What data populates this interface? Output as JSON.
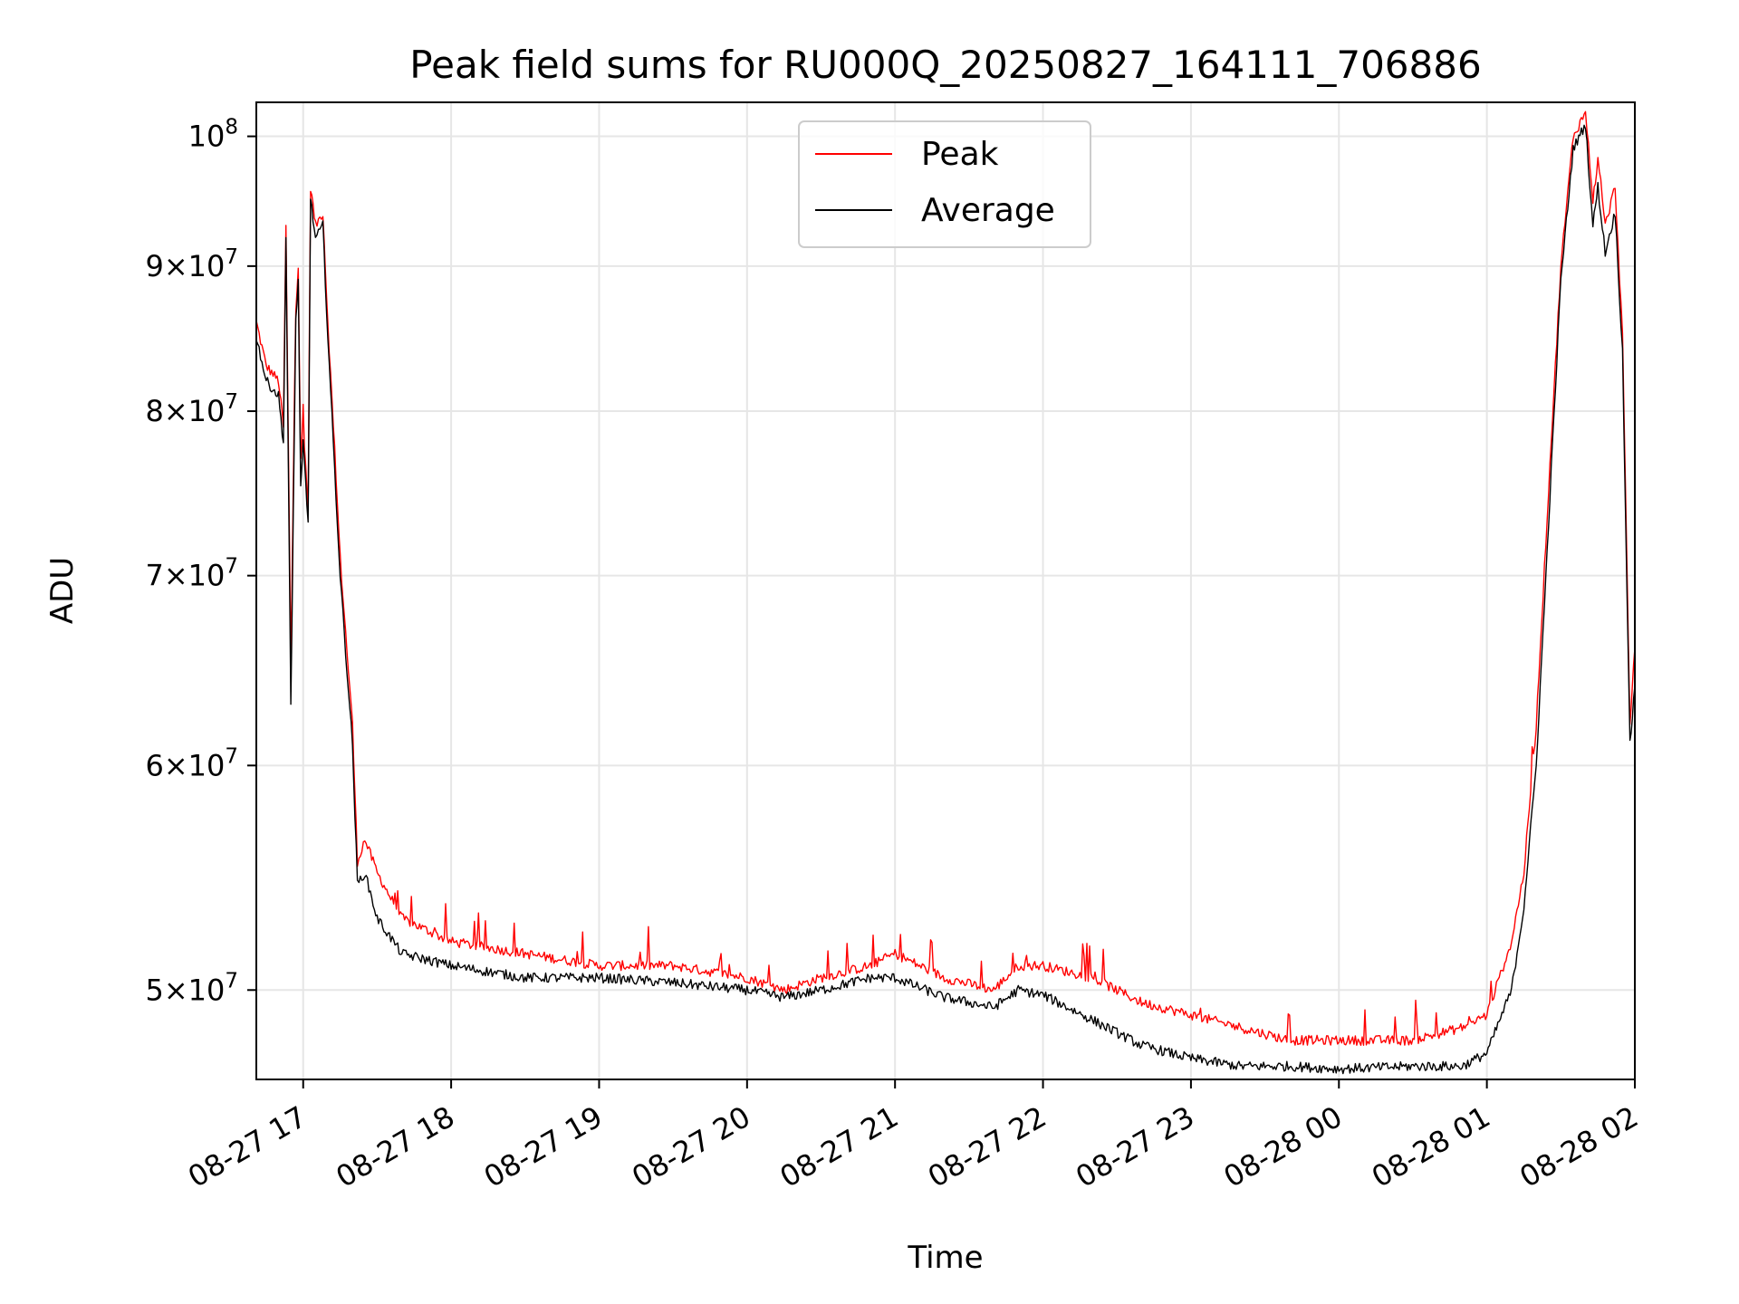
{
  "chart_data": {
    "type": "line",
    "title": "Peak field sums for RU000Q_20250827_164111_706886",
    "xlabel": "Time",
    "ylabel": "ADU",
    "y_scale": "log",
    "xlim": [
      "2025-08-27 16:41",
      "2025-08-28 02:00"
    ],
    "ylim": [
      46500000,
      102800000
    ],
    "grid": true,
    "legend": {
      "placement": "top-center",
      "entries": [
        "Peak",
        "Average"
      ]
    },
    "colors": {
      "Peak": "#ff0000",
      "Average": "#000000"
    },
    "x_ticks": [
      {
        "t": "2025-08-27 17:00",
        "label": "08-27 17"
      },
      {
        "t": "2025-08-27 18:00",
        "label": "08-27 18"
      },
      {
        "t": "2025-08-27 19:00",
        "label": "08-27 19"
      },
      {
        "t": "2025-08-27 20:00",
        "label": "08-27 20"
      },
      {
        "t": "2025-08-27 21:00",
        "label": "08-27 21"
      },
      {
        "t": "2025-08-27 22:00",
        "label": "08-27 22"
      },
      {
        "t": "2025-08-27 23:00",
        "label": "08-27 23"
      },
      {
        "t": "2025-08-28 00:00",
        "label": "08-28 00"
      },
      {
        "t": "2025-08-28 01:00",
        "label": "08-28 01"
      },
      {
        "t": "2025-08-28 02:00",
        "label": "08-28 02"
      }
    ],
    "y_ticks": [
      {
        "value": 50000000,
        "mantissa": "5",
        "exp": "7"
      },
      {
        "value": 60000000,
        "mantissa": "6",
        "exp": "7"
      },
      {
        "value": 70000000,
        "mantissa": "7",
        "exp": "7"
      },
      {
        "value": 80000000,
        "mantissa": "8",
        "exp": "7"
      },
      {
        "value": 90000000,
        "mantissa": "9",
        "exp": "7"
      },
      {
        "value": 100000000,
        "mantissa": "",
        "exp": "8"
      }
    ],
    "series": [
      {
        "name": "Peak",
        "x": [
          "2025-08-27 16:41",
          "2025-08-27 16:45",
          "2025-08-27 16:50",
          "2025-08-27 16:52",
          "2025-08-27 16:53",
          "2025-08-27 16:55",
          "2025-08-27 16:57",
          "2025-08-27 16:58",
          "2025-08-27 16:59",
          "2025-08-27 17:00",
          "2025-08-27 17:02",
          "2025-08-27 17:03",
          "2025-08-27 17:05",
          "2025-08-27 17:08",
          "2025-08-27 17:10",
          "2025-08-27 17:15",
          "2025-08-27 17:20",
          "2025-08-27 17:22",
          "2025-08-27 17:25",
          "2025-08-27 17:30",
          "2025-08-27 17:40",
          "2025-08-27 18:00",
          "2025-08-27 18:30",
          "2025-08-27 19:00",
          "2025-08-27 19:30",
          "2025-08-27 20:00",
          "2025-08-27 20:15",
          "2025-08-27 20:30",
          "2025-08-27 20:50",
          "2025-08-27 21:00",
          "2025-08-27 21:20",
          "2025-08-27 21:40",
          "2025-08-27 21:50",
          "2025-08-27 22:00",
          "2025-08-27 22:20",
          "2025-08-27 22:40",
          "2025-08-27 23:00",
          "2025-08-27 23:20",
          "2025-08-27 23:40",
          "2025-08-28 00:00",
          "2025-08-28 00:30",
          "2025-08-28 00:50",
          "2025-08-28 01:00",
          "2025-08-28 01:10",
          "2025-08-28 01:15",
          "2025-08-28 01:20",
          "2025-08-28 01:25",
          "2025-08-28 01:30",
          "2025-08-28 01:35",
          "2025-08-28 01:40",
          "2025-08-28 01:43",
          "2025-08-28 01:45",
          "2025-08-28 01:48",
          "2025-08-28 01:52",
          "2025-08-28 01:55",
          "2025-08-28 01:58",
          "2025-08-28 02:00"
        ],
        "y": [
          86000000,
          83000000,
          82000000,
          79000000,
          93000000,
          65000000,
          87000000,
          90000000,
          77000000,
          79000000,
          74000000,
          96000000,
          93000000,
          94000000,
          86000000,
          71000000,
          62000000,
          55500000,
          56500000,
          55000000,
          53000000,
          52000000,
          51500000,
          51000000,
          51000000,
          50500000,
          50000000,
          50500000,
          51000000,
          51500000,
          50500000,
          50000000,
          51000000,
          51000000,
          50500000,
          49500000,
          49000000,
          48500000,
          48000000,
          48000000,
          48000000,
          48500000,
          49000000,
          52000000,
          55000000,
          62000000,
          75000000,
          90000000,
          100000000,
          102000000,
          95000000,
          98000000,
          93000000,
          96000000,
          85000000,
          62000000,
          66000000
        ]
      },
      {
        "name": "Average",
        "x": [
          "2025-08-27 16:41",
          "2025-08-27 16:45",
          "2025-08-27 16:50",
          "2025-08-27 16:52",
          "2025-08-27 16:53",
          "2025-08-27 16:55",
          "2025-08-27 16:57",
          "2025-08-27 16:58",
          "2025-08-27 16:59",
          "2025-08-27 17:00",
          "2025-08-27 17:02",
          "2025-08-27 17:03",
          "2025-08-27 17:05",
          "2025-08-27 17:08",
          "2025-08-27 17:10",
          "2025-08-27 17:15",
          "2025-08-27 17:20",
          "2025-08-27 17:22",
          "2025-08-27 17:25",
          "2025-08-27 17:30",
          "2025-08-27 17:40",
          "2025-08-27 18:00",
          "2025-08-27 18:30",
          "2025-08-27 19:00",
          "2025-08-27 19:30",
          "2025-08-27 20:00",
          "2025-08-27 20:15",
          "2025-08-27 20:30",
          "2025-08-27 20:50",
          "2025-08-27 21:00",
          "2025-08-27 21:20",
          "2025-08-27 21:40",
          "2025-08-27 21:50",
          "2025-08-27 22:00",
          "2025-08-27 22:20",
          "2025-08-27 22:40",
          "2025-08-27 23:00",
          "2025-08-27 23:20",
          "2025-08-27 23:40",
          "2025-08-28 00:00",
          "2025-08-28 00:30",
          "2025-08-28 00:50",
          "2025-08-28 01:00",
          "2025-08-28 01:10",
          "2025-08-28 01:15",
          "2025-08-28 01:20",
          "2025-08-28 01:25",
          "2025-08-28 01:30",
          "2025-08-28 01:35",
          "2025-08-28 01:40",
          "2025-08-28 01:43",
          "2025-08-28 01:45",
          "2025-08-28 01:48",
          "2025-08-28 01:52",
          "2025-08-28 01:55",
          "2025-08-28 01:58",
          "2025-08-28 02:00"
        ],
        "y": [
          85000000,
          82000000,
          81000000,
          78000000,
          92000000,
          63000000,
          86000000,
          89000000,
          75000000,
          78000000,
          73000000,
          95000000,
          92000000,
          93000000,
          85000000,
          70000000,
          61000000,
          54500000,
          55000000,
          53000000,
          51500000,
          51000000,
          50500000,
          50500000,
          50300000,
          50000000,
          49700000,
          50000000,
          50500000,
          50500000,
          49700000,
          49300000,
          50000000,
          49800000,
          48800000,
          47800000,
          47300000,
          47000000,
          47000000,
          46900000,
          47000000,
          47000000,
          47500000,
          50000000,
          53500000,
          60000000,
          73000000,
          89000000,
          99000000,
          101000000,
          93000000,
          96000000,
          91000000,
          94000000,
          84000000,
          61000000,
          64000000
        ]
      }
    ]
  }
}
